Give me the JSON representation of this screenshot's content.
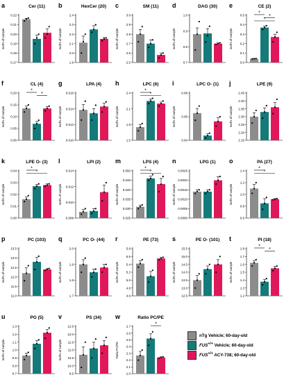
{
  "colors": {
    "ntg": "#8c8c8c",
    "veh": "#147a7a",
    "acy": "#e0185a"
  },
  "legend": {
    "items": [
      {
        "label": "nTg Vehicle; 60-day-old",
        "italic_prefix": "",
        "sup": "",
        "color": "#8c8c8c"
      },
      {
        "label": " Vehicle; 60-day-old",
        "italic_prefix": "FUS",
        "sup": "+/+",
        "color": "#147a7a"
      },
      {
        "label": " ACY-738; 60-day-old",
        "italic_prefix": "FUS",
        "sup": "+/+",
        "color": "#e0185a"
      }
    ]
  },
  "chart_data": [
    {
      "letter": "a",
      "title": "Cer (11)",
      "type": "bar",
      "ylabel": "mol% of sample",
      "ylim": [
        0.17,
        0.22
      ],
      "yticks": [
        "0.17",
        "0.18",
        "0.19",
        "0.20",
        "0.21",
        "0.22"
      ],
      "values": [
        0.2158,
        0.195,
        0.2015
      ],
      "errors": [
        0.001,
        0.004,
        0.004
      ],
      "points": [
        [
          0.214,
          0.216,
          0.217
        ],
        [
          0.19,
          0.196,
          0.2
        ],
        [
          0.196,
          0.2,
          0.208
        ]
      ],
      "sig": []
    },
    {
      "letter": "b",
      "title": "HexCer (20)",
      "type": "bar",
      "ylabel": "mol% of sample",
      "ylim": [
        1.9,
        2.4
      ],
      "yticks": [
        "1.9",
        "2.0",
        "2.1",
        "2.2",
        "2.3",
        "2.4"
      ],
      "values": [
        2.11,
        2.25,
        2.15
      ],
      "errors": [
        0.07,
        0.04,
        0.015
      ],
      "points": [
        [
          2.0,
          2.12,
          2.2
        ],
        [
          2.22,
          2.25,
          2.3
        ],
        [
          2.13,
          2.15,
          2.16
        ]
      ],
      "sig": []
    },
    {
      "letter": "c",
      "title": "SM (11)",
      "type": "bar",
      "ylabel": "mol% of sample",
      "ylim": [
        2.5,
        3.0
      ],
      "yticks": [
        "2.5",
        "2.6",
        "2.7",
        "2.8",
        "2.9",
        "3.0"
      ],
      "values": [
        2.8,
        2.7,
        2.58
      ],
      "errors": [
        0.05,
        0.04,
        0.02
      ],
      "points": [
        [
          2.72,
          2.8,
          2.88
        ],
        [
          2.66,
          2.7,
          2.74
        ],
        [
          2.55,
          2.58,
          2.6
        ]
      ],
      "sig": []
    },
    {
      "letter": "d",
      "title": "DAG (30)",
      "type": "bar",
      "ylabel": "mol% of sample",
      "ylim": [
        0.7,
        1.0
      ],
      "yticks": [
        "0.7",
        "0.8",
        "0.9",
        "1.0"
      ],
      "values": [
        0.88,
        0.885,
        0.82
      ],
      "errors": [
        0.04,
        0.03,
        0.005
      ],
      "points": [
        [
          0.78,
          0.88,
          0.96
        ],
        [
          0.83,
          0.87,
          0.93
        ],
        [
          0.815,
          0.82,
          0.825
        ]
      ],
      "sig": []
    },
    {
      "letter": "e",
      "title": "CE (2)",
      "type": "bar",
      "ylabel": "mol% of sample",
      "ylim": [
        0.0,
        0.5
      ],
      "yticks": [
        "0.0",
        "0.1",
        "0.2",
        "0.3",
        "0.4",
        "0.5"
      ],
      "values": [
        0.04,
        0.37,
        0.27
      ],
      "errors": [
        0.003,
        0.015,
        0.03
      ],
      "points": [
        [
          0.038,
          0.04,
          0.042
        ],
        [
          0.35,
          0.37,
          0.39
        ],
        [
          0.22,
          0.27,
          0.32
        ]
      ],
      "sig": [
        {
          "a": 0,
          "b": 1,
          "label": "*"
        },
        {
          "a": 1,
          "b": 2,
          "label": "*"
        },
        {
          "a": 0,
          "b": 2,
          "label": "*"
        }
      ]
    },
    {
      "letter": "f",
      "title": "CL (4)",
      "type": "bar",
      "ylabel": "mol% of sample",
      "ylim": [
        0.0,
        0.2
      ],
      "yticks": [
        "0.00",
        "0.05",
        "0.10",
        "0.15",
        "0.20"
      ],
      "values": [
        0.135,
        0.07,
        0.135
      ],
      "errors": [
        0.01,
        0.01,
        0.008
      ],
      "points": [
        [
          0.12,
          0.135,
          0.15
        ],
        [
          0.05,
          0.07,
          0.085
        ],
        [
          0.125,
          0.135,
          0.145
        ]
      ],
      "sig": [
        {
          "a": 0,
          "b": 1,
          "label": "*"
        },
        {
          "a": 1,
          "b": 2,
          "label": "*"
        }
      ]
    },
    {
      "letter": "g",
      "title": "LPA (4)",
      "type": "bar",
      "ylabel": "mol% of sample",
      "ylim": [
        0.01,
        0.017
      ],
      "yticks": [
        "0.010",
        "0.012",
        "0.014",
        "0.016"
      ],
      "values": [
        0.0145,
        0.014,
        0.015
      ],
      "errors": [
        0.0008,
        0.0007,
        0.0005
      ],
      "points": [
        [
          0.013,
          0.0145,
          0.0158
        ],
        [
          0.013,
          0.014,
          0.0152
        ],
        [
          0.0142,
          0.015,
          0.0157
        ]
      ],
      "sig": []
    },
    {
      "letter": "h",
      "title": "LPC (6)",
      "type": "bar",
      "ylabel": "mol% of sample",
      "ylim": [
        1.5,
        2.4
      ],
      "yticks": [
        "1.5",
        "1.8",
        "2.1",
        "2.4"
      ],
      "values": [
        1.75,
        2.25,
        2.2
      ],
      "errors": [
        0.05,
        0.04,
        0.03
      ],
      "points": [
        [
          1.68,
          1.75,
          1.82
        ],
        [
          2.2,
          2.25,
          2.3
        ],
        [
          2.15,
          2.2,
          2.25
        ]
      ],
      "sig": [
        {
          "a": 0,
          "b": 1,
          "label": "*"
        },
        {
          "a": 0,
          "b": 2,
          "label": "*"
        }
      ]
    },
    {
      "letter": "i",
      "title": "LPC O- (1)",
      "type": "bar",
      "ylabel": "mol% of sample",
      "ylim": [
        0.04,
        0.08
      ],
      "yticks": [
        "0.04",
        "0.06",
        "0.08"
      ],
      "values": [
        0.063,
        0.044,
        0.056
      ],
      "errors": [
        0.004,
        0.0015,
        0.003
      ],
      "points": [
        [
          0.057,
          0.063,
          0.069
        ],
        [
          0.042,
          0.044,
          0.046
        ],
        [
          0.052,
          0.056,
          0.06
        ]
      ],
      "sig": []
    },
    {
      "letter": "j",
      "title": "LPE (9)",
      "type": "bar",
      "ylabel": "mol% of sample",
      "ylim": [
        2.15,
        2.45
      ],
      "yticks": [
        "2.15",
        "2.20",
        "2.25",
        "2.30",
        "2.35",
        "2.40",
        "2.45"
      ],
      "values": [
        2.3,
        2.33,
        2.36
      ],
      "errors": [
        0.025,
        0.025,
        0.03
      ],
      "points": [
        [
          2.26,
          2.3,
          2.34
        ],
        [
          2.29,
          2.33,
          2.37
        ],
        [
          2.32,
          2.36,
          2.41
        ]
      ],
      "sig": []
    },
    {
      "letter": "k",
      "title": "LPE O- (3)",
      "type": "bar",
      "ylabel": "mol% of sample",
      "ylim": [
        0.0,
        0.04
      ],
      "yticks": [
        "0.00",
        "0.01",
        "0.02",
        "0.03",
        "0.04"
      ],
      "values": [
        0.016,
        0.027,
        0.028
      ],
      "errors": [
        0.002,
        0.0015,
        0.001
      ],
      "points": [
        [
          0.014,
          0.016,
          0.019
        ],
        [
          0.025,
          0.027,
          0.029
        ],
        [
          0.027,
          0.028,
          0.029
        ]
      ],
      "sig": [
        {
          "a": 0,
          "b": 1,
          "label": "*"
        },
        {
          "a": 0,
          "b": 2,
          "label": "*"
        }
      ]
    },
    {
      "letter": "l",
      "title": "LPI (2)",
      "type": "bar",
      "ylabel": "mol% of sample",
      "ylim": [
        0.008,
        0.014
      ],
      "yticks": [
        "0.008",
        "0.010",
        "0.012",
        "0.014"
      ],
      "values": [
        0.0088,
        0.0089,
        0.0113
      ],
      "errors": [
        0.0003,
        0.0003,
        0.0009
      ],
      "points": [
        [
          0.0085,
          0.0088,
          0.0092
        ],
        [
          0.0086,
          0.0089,
          0.0092
        ],
        [
          0.0102,
          0.0113,
          0.0125
        ]
      ],
      "sig": []
    },
    {
      "letter": "m",
      "title": "LPS (4)",
      "type": "bar",
      "ylabel": "mol% of sample",
      "ylim": [
        0.025,
        0.05
      ],
      "yticks": [
        "0.025",
        "0.030",
        "0.035",
        "0.040",
        "0.045",
        "0.050"
      ],
      "values": [
        0.031,
        0.046,
        0.043
      ],
      "errors": [
        0.0008,
        0.0012,
        0.003
      ],
      "points": [
        [
          0.03,
          0.031,
          0.032
        ],
        [
          0.045,
          0.046,
          0.048
        ],
        [
          0.039,
          0.043,
          0.047
        ]
      ],
      "sig": [
        {
          "a": 0,
          "b": 1,
          "label": "*"
        },
        {
          "a": 0,
          "b": 2,
          "label": "*"
        }
      ]
    },
    {
      "letter": "n",
      "title": "LPG (1)",
      "type": "bar",
      "ylabel": "mol% of sample",
      "ylim": [
        0.0,
        0.0025
      ],
      "yticks": [
        "0.0000",
        "0.0005",
        "0.0010",
        "0.0015",
        "0.0020",
        "0.0025"
      ],
      "values": [
        0.0014,
        0.0014,
        0.002
      ],
      "errors": [
        0.0001,
        0.0001,
        0.0002
      ],
      "points": [
        [
          0.0013,
          0.0014,
          0.0015
        ],
        [
          0.0013,
          0.0014,
          0.0015
        ],
        [
          0.0018,
          0.002,
          0.0022
        ]
      ],
      "sig": []
    },
    {
      "letter": "o",
      "title": "PA (27)",
      "type": "bar",
      "ylabel": "mol% of sample",
      "ylim": [
        0.6,
        1.4
      ],
      "yticks": [
        "0.6",
        "0.8",
        "1.0",
        "1.2",
        "1.4"
      ],
      "values": [
        1.1,
        0.85,
        0.92
      ],
      "errors": [
        0.07,
        0.08,
        0.01
      ],
      "points": [
        [
          1.02,
          1.1,
          1.2
        ],
        [
          0.75,
          0.85,
          0.95
        ],
        [
          0.91,
          0.92,
          0.93
        ]
      ],
      "sig": [
        {
          "a": 0,
          "b": 1,
          "label": "*"
        },
        {
          "a": 0,
          "b": 2,
          "label": "*"
        }
      ]
    },
    {
      "letter": "p",
      "title": "PC (103)",
      "type": "bar",
      "ylabel": "mol% of sample",
      "ylim": [
        11.0,
        13.5
      ],
      "yticks": [
        "11.0",
        "11.5",
        "12.0",
        "12.5",
        "13.0",
        "13.5"
      ],
      "values": [
        12.2,
        12.8,
        12.4
      ],
      "errors": [
        0.3,
        0.25,
        0.05
      ],
      "points": [
        [
          11.8,
          12.2,
          12.6
        ],
        [
          12.4,
          12.8,
          13.1
        ],
        [
          12.35,
          12.4,
          12.45
        ]
      ],
      "sig": []
    },
    {
      "letter": "q",
      "title": "PC O- (44)",
      "type": "bar",
      "ylabel": "mol% of sample",
      "ylim": [
        1.7,
        2.0
      ],
      "yticks": [
        "1.7",
        "1.8",
        "1.9",
        "2.0"
      ],
      "values": [
        1.9,
        1.85,
        1.88
      ],
      "errors": [
        0.03,
        0.02,
        0.02
      ],
      "points": [
        [
          1.85,
          1.9,
          1.94
        ],
        [
          1.82,
          1.85,
          1.87
        ],
        [
          1.85,
          1.88,
          1.9
        ]
      ],
      "sig": []
    },
    {
      "letter": "r",
      "title": "PE (73)",
      "type": "bar",
      "ylabel": "mol% of sample",
      "ylim": [
        4.6,
        5.8
      ],
      "yticks": [
        "4.6",
        "4.8",
        "5.0",
        "5.2",
        "5.4",
        "5.6",
        "5.8"
      ],
      "values": [
        5.42,
        5.1,
        5.55
      ],
      "errors": [
        0.07,
        0.12,
        0.03
      ],
      "points": [
        [
          5.33,
          5.42,
          5.52
        ],
        [
          4.95,
          5.1,
          5.25
        ],
        [
          5.52,
          5.55,
          5.58
        ]
      ],
      "sig": []
    },
    {
      "letter": "s",
      "title": "PE O- (101)",
      "type": "bar",
      "ylabel": "mol% of sample",
      "ylim": [
        12.5,
        15.5
      ],
      "yticks": [
        "12.5",
        "13.0",
        "13.5",
        "14.0",
        "14.5",
        "15.0",
        "15.5"
      ],
      "values": [
        13.5,
        14.2,
        14.5
      ],
      "errors": [
        0.3,
        0.2,
        0.3
      ],
      "points": [
        [
          13.0,
          13.5,
          13.9
        ],
        [
          13.9,
          14.2,
          14.5
        ],
        [
          14.0,
          14.5,
          15.0
        ]
      ],
      "sig": []
    },
    {
      "letter": "t",
      "title": "PI (18)",
      "type": "bar",
      "ylabel": "mol% of sample",
      "ylim": [
        1.2,
        1.8
      ],
      "yticks": [
        "1.2",
        "1.3",
        "1.4",
        "1.5",
        "1.6",
        "1.7",
        "1.8"
      ],
      "values": [
        1.62,
        1.38,
        1.55
      ],
      "errors": [
        0.03,
        0.03,
        0.025
      ],
      "points": [
        [
          1.58,
          1.62,
          1.66
        ],
        [
          1.34,
          1.38,
          1.42
        ],
        [
          1.52,
          1.55,
          1.58
        ]
      ],
      "sig": [
        {
          "a": 0,
          "b": 1,
          "label": "*"
        },
        {
          "a": 1,
          "b": 2,
          "label": "*"
        }
      ]
    },
    {
      "letter": "u",
      "title": "PG (5)",
      "type": "bar",
      "ylabel": "mol% of sample",
      "ylim": [
        0.7,
        1.3
      ],
      "yticks": [
        "0.7",
        "0.8",
        "0.9",
        "1.0",
        "1.1",
        "1.2",
        "1.3"
      ],
      "values": [
        0.93,
        1.08,
        1.22
      ],
      "errors": [
        0.03,
        0.04,
        0.04
      ],
      "points": [
        [
          0.88,
          0.93,
          0.97
        ],
        [
          1.02,
          1.08,
          1.13
        ],
        [
          1.15,
          1.22,
          1.28
        ]
      ],
      "sig": []
    },
    {
      "letter": "v",
      "title": "PS (34)",
      "type": "bar",
      "ylabel": "mol% of sample",
      "ylim": [
        9.5,
        12.5
      ],
      "yticks": [
        "9.5",
        "10.0",
        "10.5",
        "11.0",
        "11.5",
        "12.0",
        "12.5"
      ],
      "values": [
        10.7,
        11.1,
        11.3
      ],
      "errors": [
        0.5,
        0.4,
        0.3
      ],
      "points": [
        [
          9.9,
          10.7,
          11.5
        ],
        [
          10.5,
          11.1,
          11.7
        ],
        [
          10.8,
          11.3,
          11.8
        ]
      ],
      "sig": []
    },
    {
      "letter": "w",
      "title": "Ratio PC/PE",
      "type": "bar",
      "ylabel": "Ratio PC/PE",
      "ylim": [
        2.0,
        2.7
      ],
      "yticks": [
        "2.0",
        "2.1",
        "2.2",
        "2.3",
        "2.4",
        "2.5",
        "2.6",
        "2.7"
      ],
      "values": [
        2.27,
        2.52,
        2.24
      ],
      "errors": [
        0.06,
        0.07,
        0.01
      ],
      "points": [
        [
          2.2,
          2.27,
          2.35
        ],
        [
          2.42,
          2.52,
          2.62
        ],
        [
          2.23,
          2.24,
          2.25
        ]
      ],
      "sig": [
        {
          "a": 1,
          "b": 2,
          "label": "*"
        }
      ]
    }
  ]
}
